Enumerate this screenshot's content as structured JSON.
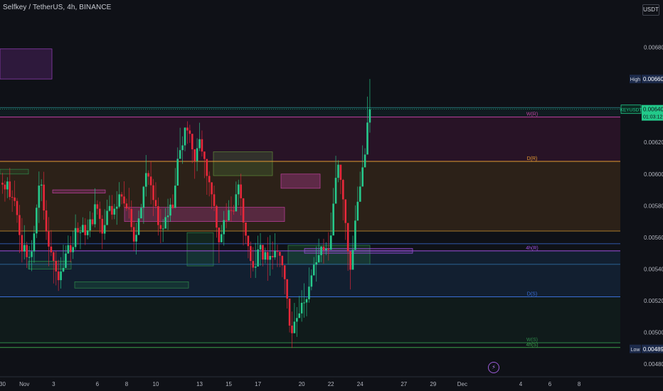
{
  "header": {
    "symbol_title": "Selfkey / TetherUS, 4h, BINANCE",
    "currency_button": "USDT"
  },
  "colors": {
    "background": "#0f1117",
    "up": "#26c98b",
    "down": "#e8283a",
    "high_label": "#1c2a4a",
    "price_tag": "#22c98a"
  },
  "icons": {
    "event_marker": "lightning-icon"
  },
  "chart_data": {
    "type": "candlestick",
    "title": "Selfkey / TetherUS, 4h, BINANCE",
    "ylim": [
      0.00472,
      0.007
    ],
    "y_ticks": [
      "0.006800",
      "0.006600",
      "0.006200",
      "0.006000",
      "0.005800",
      "0.005600",
      "0.005400",
      "0.005200",
      "0.005000",
      "0.004800"
    ],
    "y_tick_values": [
      0.0068,
      0.0066,
      0.0062,
      0.006,
      0.0058,
      0.0056,
      0.0054,
      0.0052,
      0.005,
      0.0048
    ],
    "x_ticks": [
      {
        "label": "30",
        "bar": 0
      },
      {
        "label": "Nov",
        "bar": 9
      },
      {
        "label": "3",
        "bar": 21
      },
      {
        "label": "6",
        "bar": 39
      },
      {
        "label": "8",
        "bar": 51
      },
      {
        "label": "10",
        "bar": 63
      },
      {
        "label": "13",
        "bar": 81
      },
      {
        "label": "15",
        "bar": 93
      },
      {
        "label": "17",
        "bar": 105
      },
      {
        "label": "20",
        "bar": 123
      },
      {
        "label": "22",
        "bar": 135
      },
      {
        "label": "24",
        "bar": 147
      },
      {
        "label": "27",
        "bar": 165
      },
      {
        "label": "29",
        "bar": 177
      },
      {
        "label": "Dec",
        "bar": 189
      },
      {
        "label": "4",
        "bar": 213
      },
      {
        "label": "6",
        "bar": 225
      },
      {
        "label": "8",
        "bar": 237
      }
    ],
    "price_labels": {
      "high": {
        "label": "High",
        "value": "0.006600",
        "price": 0.0066
      },
      "low": {
        "label": "Low",
        "value": "0.004896",
        "price": 0.004896
      },
      "last": {
        "symbol": "KEYUSDT",
        "value": "0.006409",
        "countdown": "01:03:12",
        "price": 0.006409
      }
    },
    "levels": [
      {
        "label": "W(R)",
        "price": 0.00636,
        "color": "#c040a0"
      },
      {
        "label": "D(R)",
        "price": 0.00608,
        "color": "#e59a32"
      },
      {
        "label": "4h(R)",
        "price": 0.005515,
        "color": "#a050e0"
      },
      {
        "label": "D(S)",
        "price": 0.005225,
        "color": "#3a6fd8"
      },
      {
        "label": "W(S)",
        "price": 0.004935,
        "color": "#2e8a4a"
      },
      {
        "label": "4h(S)",
        "price": 0.004905,
        "color": "#3aa04a"
      }
    ],
    "candles": [
      [
        0.005945,
        0.005933,
        0.006007,
        0.005875
      ],
      [
        0.005933,
        0.005903,
        0.005958,
        0.005826
      ],
      [
        0.005903,
        0.005953,
        0.00598,
        0.005848
      ],
      [
        0.005953,
        0.005855,
        0.006039,
        0.005836
      ],
      [
        0.005855,
        0.005852,
        0.005897,
        0.005761
      ],
      [
        0.005852,
        0.00583,
        0.005959,
        0.005797
      ],
      [
        0.00583,
        0.005741,
        0.005848,
        0.005692
      ],
      [
        0.005741,
        0.005615,
        0.005805,
        0.005501
      ],
      [
        0.005615,
        0.005511,
        0.005722,
        0.005442
      ],
      [
        0.005511,
        0.005552,
        0.005677,
        0.005461
      ],
      [
        0.005552,
        0.005475,
        0.005572,
        0.005407
      ],
      [
        0.005475,
        0.005476,
        0.005546,
        0.005397
      ],
      [
        0.005476,
        0.005511,
        0.005583,
        0.005387
      ],
      [
        0.005511,
        0.005625,
        0.005673,
        0.005439
      ],
      [
        0.005625,
        0.005787,
        0.005808,
        0.005596
      ],
      [
        0.005787,
        0.005927,
        0.006016,
        0.005691
      ],
      [
        0.005927,
        0.005933,
        0.005967,
        0.005829
      ],
      [
        0.005933,
        0.00577,
        0.006014,
        0.005711
      ],
      [
        0.00577,
        0.005637,
        0.005835,
        0.005584
      ],
      [
        0.005637,
        0.005542,
        0.005728,
        0.005418
      ],
      [
        0.005542,
        0.005506,
        0.005646,
        0.005482
      ],
      [
        0.005506,
        0.005452,
        0.005512,
        0.005309
      ],
      [
        0.005452,
        0.005385,
        0.005516,
        0.005297
      ],
      [
        0.005385,
        0.00533,
        0.005458,
        0.005262
      ],
      [
        0.00533,
        0.005385,
        0.005475,
        0.005277
      ],
      [
        0.005385,
        0.005407,
        0.005554,
        0.005379
      ],
      [
        0.005407,
        0.005498,
        0.005549,
        0.005413
      ],
      [
        0.005498,
        0.005551,
        0.005612,
        0.005529
      ],
      [
        0.005551,
        0.005507,
        0.005608,
        0.005443
      ],
      [
        0.005507,
        0.005539,
        0.005641,
        0.005464
      ],
      [
        0.005539,
        0.005659,
        0.005745,
        0.005522
      ],
      [
        0.005659,
        0.005632,
        0.005695,
        0.005553
      ],
      [
        0.005632,
        0.005632,
        0.005668,
        0.005526
      ],
      [
        0.005632,
        0.005679,
        0.005727,
        0.005631
      ],
      [
        0.005679,
        0.005614,
        0.005721,
        0.005552
      ],
      [
        0.005614,
        0.005644,
        0.005713,
        0.005588
      ],
      [
        0.005644,
        0.005714,
        0.005765,
        0.005601
      ],
      [
        0.005714,
        0.005683,
        0.005756,
        0.005671
      ],
      [
        0.005683,
        0.005809,
        0.00591,
        0.005663
      ],
      [
        0.005809,
        0.005781,
        0.005834,
        0.005744
      ],
      [
        0.005781,
        0.005717,
        0.005826,
        0.005626
      ],
      [
        0.005717,
        0.005624,
        0.00574,
        0.005526
      ],
      [
        0.005624,
        0.005678,
        0.005778,
        0.005585
      ],
      [
        0.005678,
        0.005768,
        0.005838,
        0.005721
      ],
      [
        0.005768,
        0.005798,
        0.005866,
        0.005763
      ],
      [
        0.005798,
        0.005744,
        0.005868,
        0.005713
      ],
      [
        0.005744,
        0.005781,
        0.005811,
        0.005715
      ],
      [
        0.005781,
        0.005794,
        0.005892,
        0.00568
      ],
      [
        0.005794,
        0.005872,
        0.005949,
        0.005784
      ],
      [
        0.005872,
        0.005858,
        0.005887,
        0.005809
      ],
      [
        0.005858,
        0.005814,
        0.005954,
        0.005788
      ],
      [
        0.005814,
        0.005783,
        0.005845,
        0.005767
      ],
      [
        0.005783,
        0.005779,
        0.005913,
        0.005719
      ],
      [
        0.005779,
        0.005665,
        0.005833,
        0.005635
      ],
      [
        0.005665,
        0.005574,
        0.005706,
        0.005514
      ],
      [
        0.005574,
        0.005616,
        0.005692,
        0.005492
      ],
      [
        0.005616,
        0.00572,
        0.005769,
        0.005613
      ],
      [
        0.00572,
        0.005787,
        0.005812,
        0.005728
      ],
      [
        0.005787,
        0.00592,
        0.005925,
        0.005686
      ],
      [
        0.00592,
        0.006006,
        0.00612,
        0.005858
      ],
      [
        0.006006,
        0.005984,
        0.006023,
        0.005932
      ],
      [
        0.005984,
        0.005929,
        0.006079,
        0.005809
      ],
      [
        0.005929,
        0.005836,
        0.005969,
        0.005735
      ],
      [
        0.005836,
        0.005797,
        0.005948,
        0.005782
      ],
      [
        0.005797,
        0.005678,
        0.005852,
        0.005612
      ],
      [
        0.005678,
        0.005654,
        0.00578,
        0.005564
      ],
      [
        0.005654,
        0.005656,
        0.005716,
        0.005571
      ],
      [
        0.005656,
        0.005728,
        0.005785,
        0.005673
      ],
      [
        0.005728,
        0.005738,
        0.005844,
        0.005646
      ],
      [
        0.005738,
        0.005807,
        0.005848,
        0.005699
      ],
      [
        0.005807,
        0.005786,
        0.005872,
        0.005779
      ],
      [
        0.005786,
        0.005927,
        0.006038,
        0.005893
      ],
      [
        0.005927,
        0.006096,
        0.006168,
        0.006028
      ],
      [
        0.006096,
        0.006151,
        0.006292,
        0.006097
      ],
      [
        0.006151,
        0.006181,
        0.006238,
        0.006064
      ],
      [
        0.006181,
        0.006293,
        0.006295,
        0.006144
      ],
      [
        0.006293,
        0.006275,
        0.006333,
        0.006191
      ],
      [
        0.006275,
        0.006254,
        0.006311,
        0.006197
      ],
      [
        0.006254,
        0.006156,
        0.006222,
        0.006069
      ],
      [
        0.006156,
        0.006083,
        0.006158,
        0.00597
      ],
      [
        0.006083,
        0.006163,
        0.006226,
        0.006018
      ],
      [
        0.006163,
        0.00622,
        0.006324,
        0.006145
      ],
      [
        0.00622,
        0.006142,
        0.006275,
        0.006111
      ],
      [
        0.006142,
        0.006095,
        0.006118,
        0.005974
      ],
      [
        0.006095,
        0.005988,
        0.006082,
        0.005869
      ],
      [
        0.005988,
        0.005948,
        0.006016,
        0.005859
      ],
      [
        0.005948,
        0.005872,
        0.005935,
        0.005779
      ],
      [
        0.005872,
        0.005798,
        0.005927,
        0.005766
      ],
      [
        0.005798,
        0.005662,
        0.005807,
        0.005598
      ],
      [
        0.005662,
        0.005569,
        0.005648,
        0.005438
      ],
      [
        0.005569,
        0.00562,
        0.005679,
        0.005577
      ],
      [
        0.00562,
        0.005709,
        0.005767,
        0.005548
      ],
      [
        0.005709,
        0.005706,
        0.005816,
        0.005659
      ],
      [
        0.005706,
        0.005772,
        0.005835,
        0.005758
      ],
      [
        0.005772,
        0.005769,
        0.005859,
        0.005702
      ],
      [
        0.005769,
        0.005764,
        0.005805,
        0.005743
      ],
      [
        0.005764,
        0.005872,
        0.005953,
        0.005811
      ],
      [
        0.005872,
        0.005934,
        0.005964,
        0.005802
      ],
      [
        0.005934,
        0.005847,
        0.006002,
        0.005739
      ],
      [
        0.005847,
        0.005694,
        0.005833,
        0.005549
      ],
      [
        0.005694,
        0.005611,
        0.005646,
        0.005561
      ],
      [
        0.005611,
        0.005545,
        0.005551,
        0.005468
      ],
      [
        0.005545,
        0.005451,
        0.005574,
        0.005344
      ],
      [
        0.005451,
        0.005409,
        0.005539,
        0.005385
      ],
      [
        0.005409,
        0.005416,
        0.005565,
        0.005344
      ],
      [
        0.005416,
        0.005524,
        0.005611,
        0.005495
      ],
      [
        0.005524,
        0.005553,
        0.005627,
        0.005422
      ],
      [
        0.005553,
        0.00546,
        0.005475,
        0.005417
      ],
      [
        0.00546,
        0.005507,
        0.005535,
        0.005436
      ],
      [
        0.005507,
        0.005459,
        0.005602,
        0.005326
      ],
      [
        0.005459,
        0.005483,
        0.005614,
        0.005358
      ],
      [
        0.005483,
        0.005474,
        0.005574,
        0.005398
      ],
      [
        0.005474,
        0.005515,
        0.005626,
        0.005459
      ],
      [
        0.005515,
        0.005509,
        0.005555,
        0.005413
      ],
      [
        0.005509,
        0.005484,
        0.005505,
        0.005412
      ],
      [
        0.005484,
        0.005424,
        0.005485,
        0.005349
      ],
      [
        0.005424,
        0.005336,
        0.005366,
        0.005241
      ],
      [
        0.005336,
        0.005214,
        0.005318,
        0.005151
      ],
      [
        0.005214,
        0.005043,
        0.005151,
        0.005
      ],
      [
        0.005043,
        0.004995,
        0.005132,
        0.004902
      ],
      [
        0.004995,
        0.005068,
        0.005186,
        0.005012
      ],
      [
        0.005068,
        0.005091,
        0.00516,
        0.004972
      ],
      [
        0.005091,
        0.00512,
        0.00523,
        0.005107
      ],
      [
        0.00512,
        0.005187,
        0.005267,
        0.005068
      ],
      [
        0.005187,
        0.005189,
        0.00531,
        0.005093
      ],
      [
        0.005189,
        0.00521,
        0.005221,
        0.005102
      ],
      [
        0.00521,
        0.005289,
        0.00541,
        0.005188
      ],
      [
        0.005289,
        0.00536,
        0.005398,
        0.005266
      ],
      [
        0.00536,
        0.005428,
        0.005476,
        0.005401
      ],
      [
        0.005428,
        0.005443,
        0.005543,
        0.005321
      ],
      [
        0.005443,
        0.005488,
        0.005592,
        0.005438
      ],
      [
        0.005488,
        0.005542,
        0.005546,
        0.005444
      ],
      [
        0.005542,
        0.005519,
        0.005591,
        0.005435
      ],
      [
        0.005519,
        0.005528,
        0.005569,
        0.005488
      ],
      [
        0.005528,
        0.005522,
        0.005633,
        0.005454
      ],
      [
        0.005522,
        0.005612,
        0.005757,
        0.005553
      ],
      [
        0.005612,
        0.005813,
        0.005912,
        0.005761
      ],
      [
        0.005813,
        0.005976,
        0.006115,
        0.005914
      ],
      [
        0.005976,
        0.006059,
        0.006087,
        0.005948
      ],
      [
        0.006059,
        0.005963,
        0.006014,
        0.005873
      ],
      [
        0.005963,
        0.00584,
        0.005969,
        0.005707
      ],
      [
        0.00584,
        0.005691,
        0.00584,
        0.005584
      ],
      [
        0.005691,
        0.005512,
        0.005681,
        0.005389
      ],
      [
        0.005512,
        0.005396,
        0.005445,
        0.005271
      ],
      [
        0.005396,
        0.005521,
        0.005611,
        0.005446
      ],
      [
        0.005521,
        0.005706,
        0.005802,
        0.005567
      ],
      [
        0.005706,
        0.005825,
        0.005921,
        0.005776
      ],
      [
        0.005825,
        0.005921,
        0.006015,
        0.00589
      ],
      [
        0.005921,
        0.006042,
        0.006181,
        0.006026
      ],
      [
        0.006042,
        0.006123,
        0.006163,
        0.006047
      ],
      [
        0.006123,
        0.006325,
        0.006489,
        0.006256
      ],
      [
        0.006325,
        0.006409,
        0.0066,
        0.006261
      ]
    ]
  }
}
